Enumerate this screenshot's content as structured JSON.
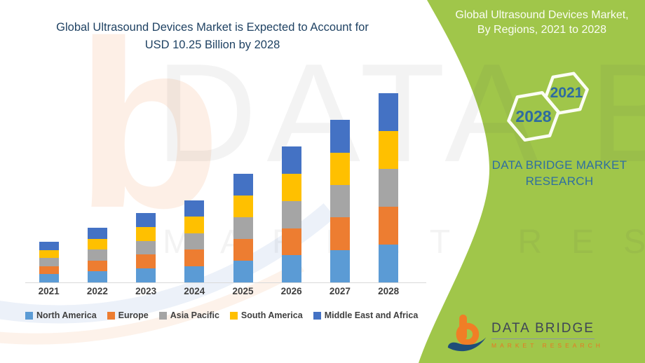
{
  "page": {
    "background": "#ffffff",
    "accent_green": "#A0C64A",
    "title_color": "#1F4263"
  },
  "header": {
    "title_line1": "Global Ultrasound Devices Market is Expected to Account for",
    "title_line2": "USD 10.25 Billion by 2028"
  },
  "side_panel": {
    "bg_color": "#A0C64A",
    "heading_line1": "Global Ultrasound Devices Market,",
    "heading_line2": "By Regions, 2021 to 2028",
    "hexagons": [
      {
        "label": "2028"
      },
      {
        "label": "2021"
      }
    ],
    "brand_line1": "DATA BRIDGE MARKET",
    "brand_line2": "RESEARCH",
    "brand_color": "#2F6FA0"
  },
  "chart_data": {
    "type": "bar",
    "stacked": true,
    "title": "Global Ultrasound Devices Market, By Regions, 2021 to 2028",
    "unit": "USD Billion",
    "categories": [
      "2021",
      "2022",
      "2023",
      "2024",
      "2025",
      "2026",
      "2027",
      "2028"
    ],
    "series": [
      {
        "name": "North America",
        "color": "#5B9BD5",
        "values": [
          0.44,
          0.59,
          0.75,
          0.89,
          1.18,
          1.47,
          1.76,
          2.05
        ]
      },
      {
        "name": "Europe",
        "color": "#ED7D31",
        "values": [
          0.44,
          0.59,
          0.75,
          0.89,
          1.18,
          1.47,
          1.76,
          2.05
        ]
      },
      {
        "name": "Asia Pacific",
        "color": "#A5A5A5",
        "values": [
          0.44,
          0.59,
          0.75,
          0.89,
          1.18,
          1.47,
          1.76,
          2.05
        ]
      },
      {
        "name": "South America",
        "color": "#FFC000",
        "values": [
          0.44,
          0.59,
          0.75,
          0.89,
          1.18,
          1.47,
          1.76,
          2.05
        ]
      },
      {
        "name": "Middle East and Africa",
        "color": "#4472C4",
        "values": [
          0.44,
          0.59,
          0.75,
          0.89,
          1.18,
          1.47,
          1.76,
          2.05
        ]
      }
    ],
    "estimated_totals": [
      2.21,
      2.97,
      3.73,
      4.43,
      5.91,
      7.36,
      8.79,
      10.25
    ],
    "xlabel": "",
    "ylabel": "",
    "y_axis_visible": false,
    "gridlines": false,
    "legend_position": "bottom"
  },
  "watermark": {
    "row1": "DATA BRIDGE",
    "row2": "MARKET RESEARCH",
    "letter": "b"
  },
  "logo": {
    "name": "DATA BRIDGE",
    "subtitle": "MARKET  RESEARCH"
  }
}
